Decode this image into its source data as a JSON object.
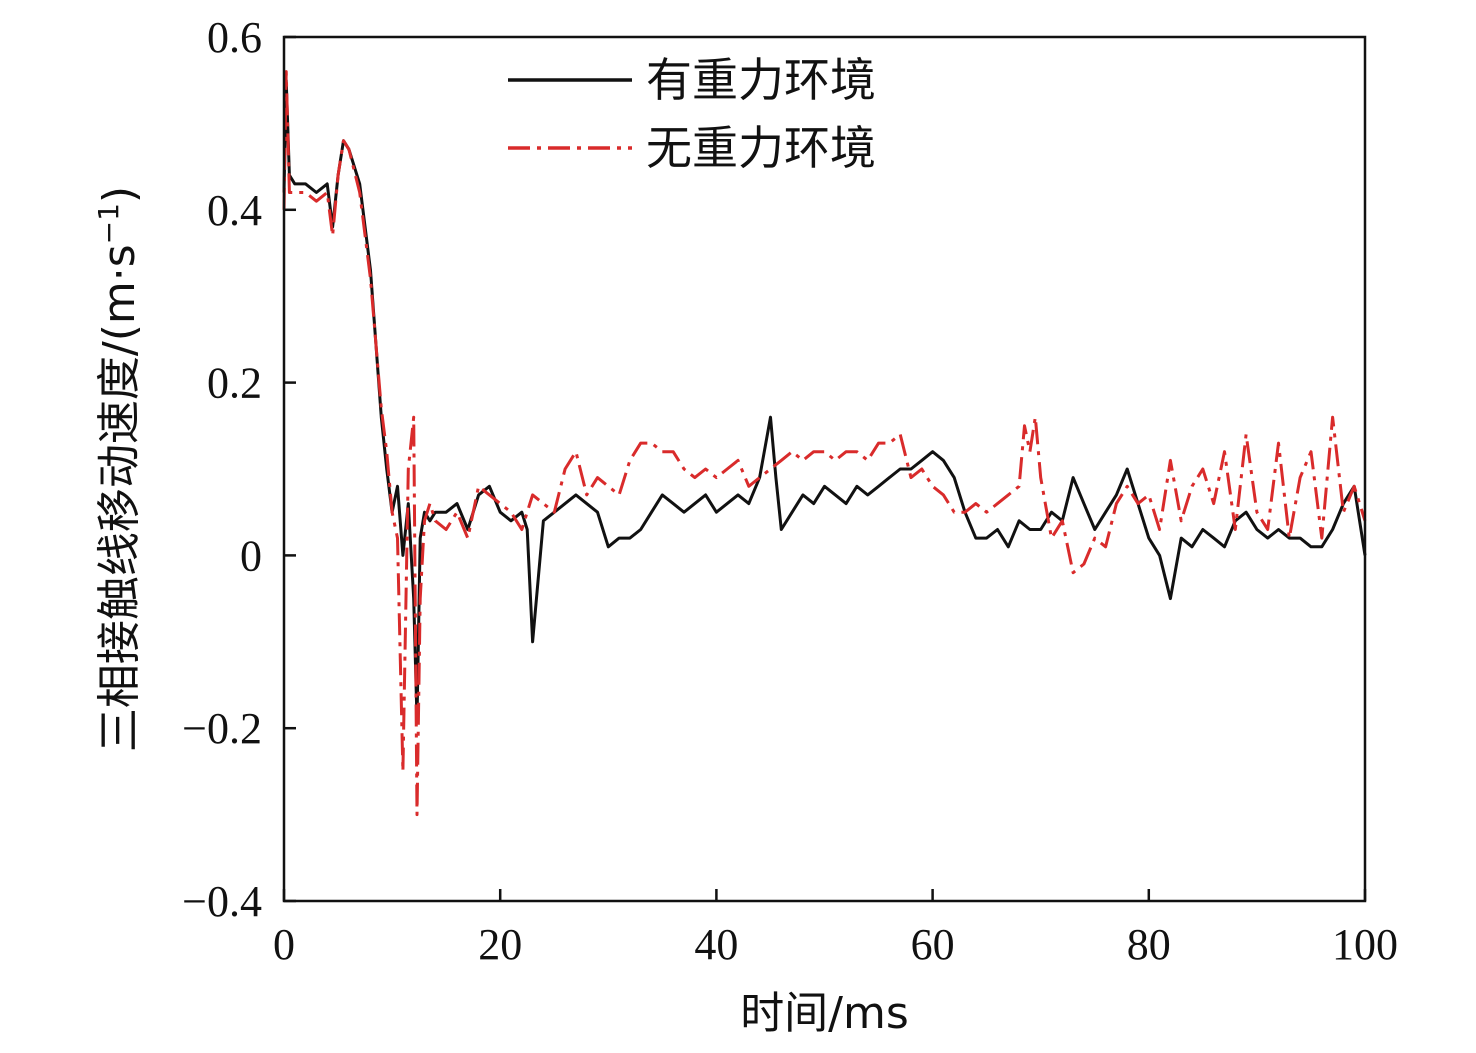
{
  "chart_data": {
    "type": "line",
    "title": "",
    "xlabel": "时间/ms",
    "ylabel": "三相接触线移动速度/(m·s",
    "ylabel_sup": "−1",
    "ylabel_close": ")",
    "xlim": [
      0,
      100
    ],
    "ylim": [
      -0.4,
      0.6
    ],
    "xticks": [
      0,
      20,
      40,
      60,
      80,
      100
    ],
    "xtick_labels": [
      "0",
      "20",
      "40",
      "60",
      "80",
      "100"
    ],
    "yticks": [
      -0.4,
      -0.2,
      0,
      0.2,
      0.4,
      0.6
    ],
    "ytick_labels": [
      "−0.4",
      "−0.2",
      "0",
      "0.2",
      "0.4",
      "0.6"
    ],
    "grid": false,
    "legend_position": "top-center",
    "series": [
      {
        "name": "有重力环境",
        "color": "#111111",
        "style": "solid",
        "x": [
          0,
          0.2,
          0.5,
          1,
          2,
          3,
          4,
          4.5,
          5,
          5.5,
          6,
          7,
          8,
          9,
          9.5,
          10,
          10.5,
          11,
          11.5,
          12,
          12.3,
          12.6,
          13,
          13.5,
          14,
          15,
          16,
          17,
          18,
          19,
          20,
          21,
          22,
          22.5,
          23,
          24,
          25,
          26,
          27,
          28,
          29,
          30,
          31,
          32,
          33,
          34,
          35,
          36,
          37,
          38,
          39,
          40,
          41,
          42,
          43,
          44,
          45,
          45.5,
          46,
          47,
          48,
          49,
          50,
          51,
          52,
          53,
          54,
          55,
          56,
          57,
          58,
          59,
          60,
          61,
          62,
          63,
          64,
          65,
          66,
          67,
          68,
          69,
          70,
          71,
          72,
          73,
          74,
          75,
          76,
          77,
          78,
          79,
          80,
          81,
          82,
          83,
          84,
          85,
          86,
          87,
          88,
          89,
          90,
          91,
          92,
          93,
          94,
          95,
          96,
          97,
          98,
          99,
          100
        ],
        "y": [
          0.42,
          0.55,
          0.44,
          0.43,
          0.43,
          0.42,
          0.43,
          0.38,
          0.44,
          0.48,
          0.47,
          0.43,
          0.33,
          0.16,
          0.1,
          0.05,
          0.08,
          0.0,
          0.06,
          -0.05,
          -0.19,
          0.02,
          0.05,
          0.04,
          0.05,
          0.05,
          0.06,
          0.03,
          0.07,
          0.08,
          0.05,
          0.04,
          0.05,
          0.03,
          -0.1,
          0.04,
          0.05,
          0.06,
          0.07,
          0.06,
          0.05,
          0.01,
          0.02,
          0.02,
          0.03,
          0.05,
          0.07,
          0.06,
          0.05,
          0.06,
          0.07,
          0.05,
          0.06,
          0.07,
          0.06,
          0.09,
          0.16,
          0.09,
          0.03,
          0.05,
          0.07,
          0.06,
          0.08,
          0.07,
          0.06,
          0.08,
          0.07,
          0.08,
          0.09,
          0.1,
          0.1,
          0.11,
          0.12,
          0.11,
          0.09,
          0.05,
          0.02,
          0.02,
          0.03,
          0.01,
          0.04,
          0.03,
          0.03,
          0.05,
          0.04,
          0.09,
          0.06,
          0.03,
          0.05,
          0.07,
          0.1,
          0.06,
          0.02,
          0.0,
          -0.05,
          0.02,
          0.01,
          0.03,
          0.02,
          0.01,
          0.04,
          0.05,
          0.03,
          0.02,
          0.03,
          0.02,
          0.02,
          0.01,
          0.01,
          0.03,
          0.06,
          0.08,
          0.0
        ]
      },
      {
        "name": "无重力环境",
        "color": "#d92b2b",
        "style": "dashdot",
        "x": [
          0,
          0.2,
          0.5,
          1,
          2,
          3,
          4,
          4.5,
          5,
          5.5,
          6,
          7,
          8,
          9,
          9.5,
          10,
          10.5,
          11,
          11.5,
          12,
          12.3,
          12.6,
          13,
          13.5,
          14,
          15,
          16,
          17,
          18,
          19,
          20,
          21,
          22,
          23,
          24,
          25,
          26,
          27,
          28,
          29,
          30,
          31,
          32,
          33,
          34,
          35,
          36,
          37,
          38,
          39,
          40,
          41,
          42,
          43,
          44,
          45,
          46,
          47,
          48,
          49,
          50,
          51,
          52,
          53,
          54,
          55,
          56,
          57,
          58,
          59,
          60,
          61,
          62,
          63,
          64,
          65,
          66,
          67,
          68,
          68.5,
          69,
          69.5,
          70,
          71,
          72,
          73,
          74,
          75,
          76,
          77,
          78,
          79,
          80,
          81,
          82,
          83,
          84,
          85,
          86,
          87,
          88,
          89,
          90,
          91,
          92,
          93,
          94,
          95,
          96,
          97,
          98,
          99,
          100
        ],
        "y": [
          0.4,
          0.56,
          0.42,
          0.42,
          0.42,
          0.41,
          0.42,
          0.37,
          0.44,
          0.48,
          0.47,
          0.42,
          0.32,
          0.17,
          0.12,
          0.05,
          0.02,
          -0.25,
          0.1,
          0.16,
          -0.3,
          -0.05,
          0.04,
          0.06,
          0.04,
          0.03,
          0.05,
          0.02,
          0.08,
          0.07,
          0.06,
          0.05,
          0.03,
          0.07,
          0.06,
          0.05,
          0.1,
          0.12,
          0.07,
          0.09,
          0.08,
          0.07,
          0.11,
          0.13,
          0.13,
          0.12,
          0.12,
          0.1,
          0.09,
          0.1,
          0.09,
          0.1,
          0.11,
          0.08,
          0.09,
          0.1,
          0.11,
          0.12,
          0.11,
          0.12,
          0.12,
          0.11,
          0.12,
          0.12,
          0.11,
          0.13,
          0.13,
          0.14,
          0.09,
          0.1,
          0.08,
          0.07,
          0.05,
          0.05,
          0.06,
          0.05,
          0.06,
          0.07,
          0.08,
          0.15,
          0.12,
          0.16,
          0.09,
          0.02,
          0.04,
          -0.02,
          -0.01,
          0.02,
          0.01,
          0.06,
          0.08,
          0.06,
          0.07,
          0.03,
          0.11,
          0.04,
          0.08,
          0.1,
          0.06,
          0.12,
          0.03,
          0.14,
          0.05,
          0.03,
          0.13,
          0.02,
          0.09,
          0.12,
          0.02,
          0.16,
          0.05,
          0.08,
          0.04
        ]
      }
    ]
  }
}
